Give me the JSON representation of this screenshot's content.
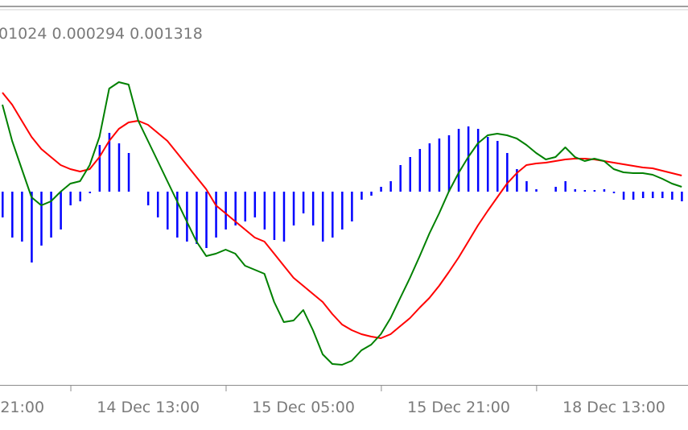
{
  "chart_data": {
    "type": "macd",
    "subtitle": "01024 0.000294 0.001318",
    "xlim": [
      -0.25,
      70.65
    ],
    "ylim": [
      -2.4,
      2.26
    ],
    "xticks": [
      {
        "value": -8.95,
        "label": "21:00"
      },
      {
        "value": 7.05,
        "label": "14 Dec 13:00"
      },
      {
        "value": 23.05,
        "label": "15 Dec 05:00"
      },
      {
        "value": 39.05,
        "label": "15 Dec 21:00"
      },
      {
        "value": 55.05,
        "label": "18 Dec 13:00"
      }
    ],
    "series": [
      {
        "kind": "histogram",
        "color": "#0000ff",
        "values": [
          -0.32,
          -0.57,
          -0.62,
          -0.88,
          -0.67,
          -0.57,
          -0.47,
          -0.17,
          -0.12,
          -0.02,
          0.58,
          0.73,
          0.6,
          0.48,
          0,
          -0.17,
          -0.32,
          -0.47,
          -0.57,
          -0.62,
          -0.65,
          -0.7,
          -0.57,
          -0.47,
          -0.42,
          -0.37,
          -0.32,
          -0.47,
          -0.6,
          -0.62,
          -0.42,
          -0.27,
          -0.42,
          -0.62,
          -0.57,
          -0.47,
          -0.37,
          -0.1,
          -0.05,
          0.06,
          0.13,
          0.33,
          0.43,
          0.53,
          0.6,
          0.66,
          0.7,
          0.78,
          0.81,
          0.78,
          0.68,
          0.63,
          0.48,
          0.28,
          0.13,
          0.03,
          0,
          0.06,
          0.13,
          0.03,
          0.02,
          0.02,
          0.03,
          -0.02,
          -0.1,
          -0.1,
          -0.08,
          -0.08,
          -0.08,
          -0.1,
          -0.12
        ]
      },
      {
        "kind": "line",
        "color": "#ff0000",
        "values": [
          1.23,
          1.08,
          0.88,
          0.68,
          0.53,
          0.43,
          0.33,
          0.28,
          0.25,
          0.28,
          0.43,
          0.63,
          0.78,
          0.86,
          0.88,
          0.83,
          0.73,
          0.63,
          0.48,
          0.33,
          0.18,
          0.03,
          -0.17,
          -0.27,
          -0.37,
          -0.47,
          -0.57,
          -0.62,
          -0.77,
          -0.92,
          -1.07,
          -1.17,
          -1.27,
          -1.37,
          -1.52,
          -1.65,
          -1.72,
          -1.77,
          -1.8,
          -1.82,
          -1.77,
          -1.67,
          -1.57,
          -1.44,
          -1.32,
          -1.17,
          -1.0,
          -0.82,
          -0.62,
          -0.42,
          -0.24,
          -0.07,
          0.1,
          0.23,
          0.33,
          0.35,
          0.36,
          0.38,
          0.4,
          0.41,
          0.41,
          0.4,
          0.38,
          0.36,
          0.34,
          0.32,
          0.3,
          0.29,
          0.26,
          0.23,
          0.2
        ]
      },
      {
        "kind": "line",
        "color": "#008000",
        "values": [
          1.08,
          0.63,
          0.28,
          -0.07,
          -0.17,
          -0.12,
          0,
          0.1,
          0.13,
          0.33,
          0.68,
          1.28,
          1.36,
          1.33,
          0.88,
          0.63,
          0.38,
          0.13,
          -0.12,
          -0.37,
          -0.62,
          -0.8,
          -0.77,
          -0.72,
          -0.77,
          -0.92,
          -0.97,
          -1.02,
          -1.37,
          -1.62,
          -1.6,
          -1.47,
          -1.72,
          -2.02,
          -2.14,
          -2.15,
          -2.1,
          -1.97,
          -1.9,
          -1.77,
          -1.57,
          -1.32,
          -1.07,
          -0.8,
          -0.52,
          -0.27,
          0,
          0.23,
          0.43,
          0.6,
          0.7,
          0.72,
          0.7,
          0.66,
          0.58,
          0.48,
          0.4,
          0.43,
          0.55,
          0.43,
          0.38,
          0.41,
          0.38,
          0.28,
          0.24,
          0.23,
          0.23,
          0.21,
          0.16,
          0.1,
          0.06
        ]
      }
    ]
  }
}
